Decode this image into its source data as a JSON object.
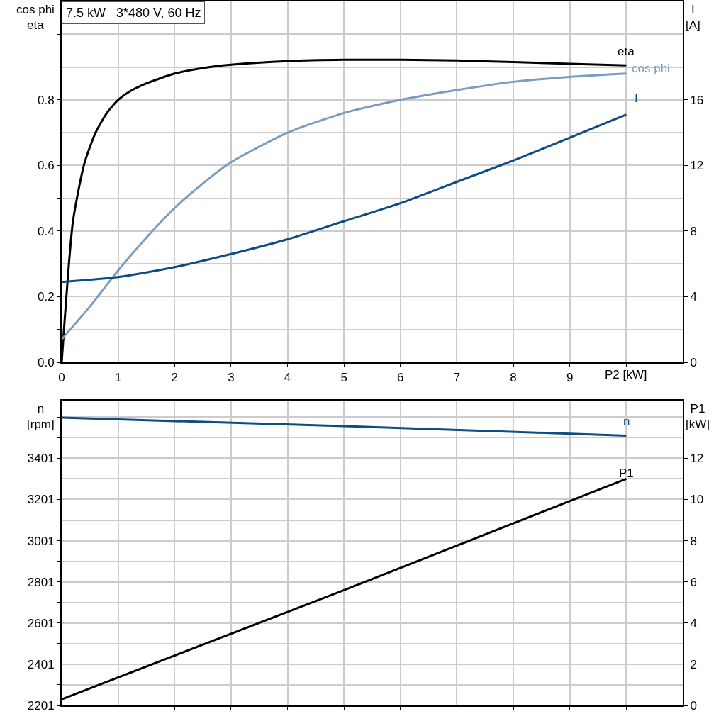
{
  "chart_data": [
    {
      "type": "line",
      "title": "7.5 kW   3*480 V, 60 Hz",
      "ylabel": "cos phi\neta",
      "y2label": "I\n[A]",
      "grid": true,
      "legend": false,
      "tick_labels": "xy",
      "line_style": "solid",
      "marker": "none",
      "xlim": [
        0,
        11
      ],
      "xticks": [
        {
          "value": 0,
          "label": "0"
        },
        1,
        2,
        3,
        4,
        5,
        6,
        7,
        8,
        9,
        {
          "value": 10,
          "label": null
        }
      ],
      "xlabel": "P2 [kW]",
      "ylim": [
        0,
        1.1
      ],
      "yticks": [
        {
          "value": 0,
          "label": "0.0"
        },
        {
          "value": 0.1,
          "label": null
        },
        0.2,
        {
          "value": 0.3,
          "label": null
        },
        0.4,
        {
          "value": 0.5,
          "label": null
        },
        0.6,
        {
          "value": 0.7,
          "label": null
        },
        0.8,
        {
          "value": 0.9,
          "label": null
        },
        {
          "value": 1.0,
          "label": null
        }
      ],
      "y2lim": [
        0,
        22
      ],
      "y2ticks": [
        0,
        4,
        8,
        12,
        16
      ],
      "series": [
        {
          "name": "eta",
          "color": "#000000",
          "x": [
            0,
            0.2,
            0.4,
            0.6,
            0.8,
            1,
            1.2,
            1.5,
            2,
            2.5,
            3,
            4,
            5,
            6,
            7,
            8,
            9,
            10
          ],
          "values": [
            0,
            0.43,
            0.605,
            0.7,
            0.76,
            0.8,
            0.825,
            0.85,
            0.88,
            0.897,
            0.907,
            0.918,
            0.922,
            0.922,
            0.92,
            0.915,
            0.91,
            0.905
          ]
        },
        {
          "name": "cos phi",
          "color": "#7a9cbf",
          "x": [
            0,
            0.5,
            1,
            1.5,
            2,
            2.5,
            3,
            4,
            5,
            6,
            7,
            8,
            9,
            10
          ],
          "values": [
            0.07,
            0.17,
            0.28,
            0.38,
            0.47,
            0.545,
            0.61,
            0.7,
            0.76,
            0.8,
            0.83,
            0.855,
            0.87,
            0.88
          ]
        },
        {
          "name": "I",
          "color": "#0f4c81",
          "axis": "y2",
          "x": [
            0,
            1,
            2,
            3,
            4,
            5,
            6,
            7,
            8,
            9,
            10
          ],
          "values": [
            4.9,
            5.2,
            5.8,
            6.6,
            7.5,
            8.6,
            9.7,
            11.0,
            12.3,
            13.7,
            15.1
          ]
        }
      ]
    },
    {
      "type": "line",
      "ylabel": "n\n[rpm]",
      "y2label": "P1\n[kW]",
      "grid": true,
      "legend": false,
      "tick_labels": "y",
      "line_style": "solid",
      "marker": "none",
      "xlim": [
        0,
        11
      ],
      "xticks": [
        {
          "value": 0,
          "label": null
        },
        {
          "value": 1,
          "label": null
        },
        {
          "value": 2,
          "label": null
        },
        {
          "value": 3,
          "label": null
        },
        {
          "value": 4,
          "label": null
        },
        {
          "value": 5,
          "label": null
        },
        {
          "value": 6,
          "label": null
        },
        {
          "value": 7,
          "label": null
        },
        {
          "value": 8,
          "label": null
        },
        {
          "value": 9,
          "label": null
        },
        {
          "value": 10,
          "label": null
        }
      ],
      "ylim": [
        2201,
        3681
      ],
      "yticks": [
        2201,
        {
          "value": 2301,
          "label": null
        },
        2401,
        {
          "value": 2501,
          "label": null
        },
        2601,
        {
          "value": 2701,
          "label": null
        },
        2801,
        {
          "value": 2901,
          "label": null
        },
        3001,
        {
          "value": 3101,
          "label": null
        },
        3201,
        {
          "value": 3301,
          "label": null
        },
        3401,
        {
          "value": 3501,
          "label": null
        },
        {
          "value": 3601,
          "label": null
        }
      ],
      "y2lim": [
        0,
        14.8
      ],
      "y2ticks": [
        0,
        2,
        4,
        6,
        8,
        10,
        12
      ],
      "series": [
        {
          "name": "n",
          "color": "#0f4c81",
          "x": [
            0,
            5,
            10
          ],
          "values": [
            3598,
            3557,
            3511
          ]
        },
        {
          "name": "P1",
          "color": "#000000",
          "axis": "y2",
          "x": [
            0,
            5,
            10
          ],
          "values": [
            0.3,
            5.6,
            11.0
          ]
        }
      ]
    }
  ]
}
